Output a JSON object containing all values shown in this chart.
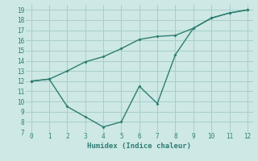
{
  "xlabel": "Humidex (Indice chaleur)",
  "xlim": [
    -0.3,
    12.3
  ],
  "ylim": [
    7,
    19.5
  ],
  "xticks": [
    0,
    1,
    2,
    3,
    4,
    5,
    6,
    7,
    8,
    9,
    10,
    11,
    12
  ],
  "yticks": [
    7,
    8,
    9,
    10,
    11,
    12,
    13,
    14,
    15,
    16,
    17,
    18,
    19
  ],
  "background_color": "#cde8e5",
  "grid_color": "#a8ceca",
  "line_color": "#2e7d72",
  "upper_x": [
    0,
    1,
    2,
    3,
    4,
    5,
    6,
    7,
    8,
    9,
    10,
    11,
    12
  ],
  "upper_y": [
    12.0,
    12.2,
    13.0,
    13.9,
    14.4,
    15.2,
    16.1,
    16.4,
    16.5,
    17.2,
    18.2,
    18.7,
    19.0
  ],
  "lower_x": [
    0,
    1,
    2,
    3,
    4,
    5,
    6,
    7,
    8,
    9,
    10,
    11,
    12
  ],
  "lower_y": [
    12.0,
    12.2,
    9.5,
    8.5,
    7.5,
    8.0,
    11.5,
    9.8,
    14.6,
    17.2,
    18.2,
    18.7,
    19.0
  ]
}
